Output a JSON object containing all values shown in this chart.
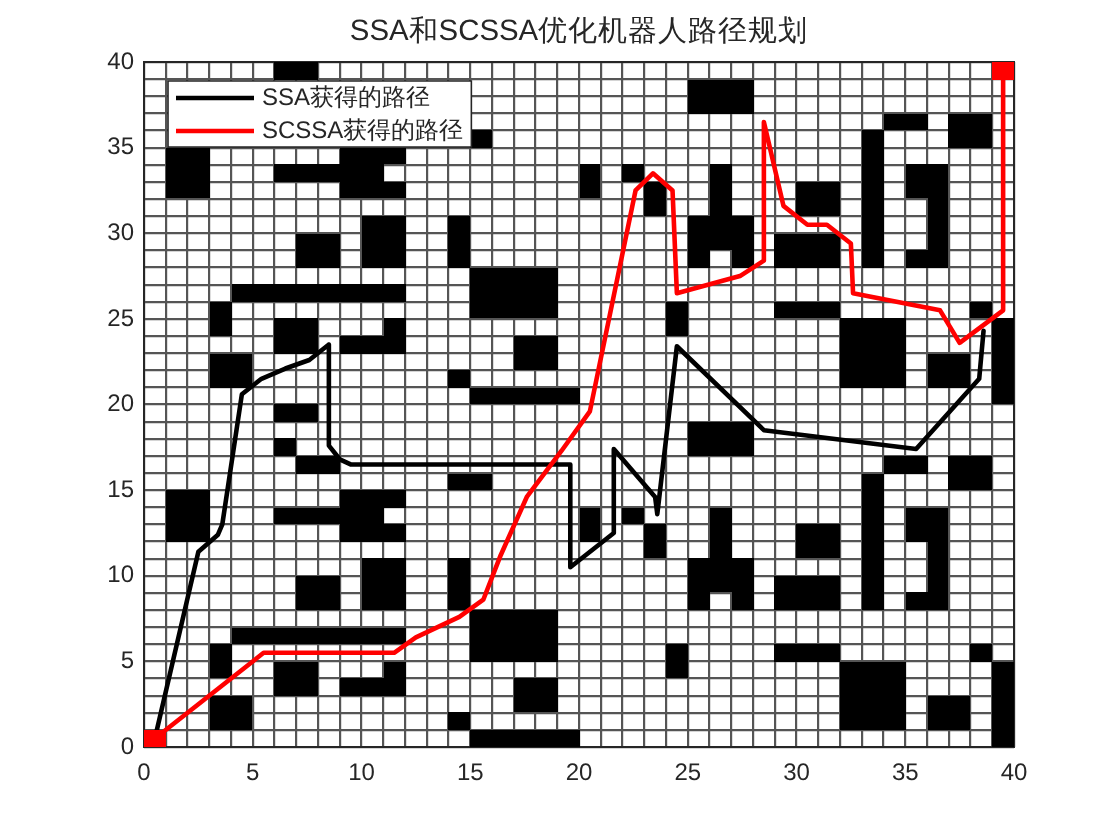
{
  "chart_data": {
    "type": "line",
    "title": "SSA和SCSSA优化机器人路径规划",
    "xlim": [
      0,
      40
    ],
    "ylim": [
      0,
      40
    ],
    "xticks": [
      0,
      {
        "value": 1,
        "label": null
      },
      {
        "value": 2,
        "label": null
      },
      {
        "value": 3,
        "label": null
      },
      {
        "value": 4,
        "label": null
      },
      5,
      {
        "value": 6,
        "label": null
      },
      {
        "value": 7,
        "label": null
      },
      {
        "value": 8,
        "label": null
      },
      {
        "value": 9,
        "label": null
      },
      10,
      {
        "value": 11,
        "label": null
      },
      {
        "value": 12,
        "label": null
      },
      {
        "value": 13,
        "label": null
      },
      {
        "value": 14,
        "label": null
      },
      15,
      {
        "value": 16,
        "label": null
      },
      {
        "value": 17,
        "label": null
      },
      {
        "value": 18,
        "label": null
      },
      {
        "value": 19,
        "label": null
      },
      20,
      {
        "value": 21,
        "label": null
      },
      {
        "value": 22,
        "label": null
      },
      {
        "value": 23,
        "label": null
      },
      {
        "value": 24,
        "label": null
      },
      25,
      {
        "value": 26,
        "label": null
      },
      {
        "value": 27,
        "label": null
      },
      {
        "value": 28,
        "label": null
      },
      {
        "value": 29,
        "label": null
      },
      30,
      {
        "value": 31,
        "label": null
      },
      {
        "value": 32,
        "label": null
      },
      {
        "value": 33,
        "label": null
      },
      {
        "value": 34,
        "label": null
      },
      35,
      {
        "value": 36,
        "label": null
      },
      {
        "value": 37,
        "label": null
      },
      {
        "value": 38,
        "label": null
      },
      {
        "value": 39,
        "label": null
      },
      40
    ],
    "yticks": [
      0,
      {
        "value": 1,
        "label": null
      },
      {
        "value": 2,
        "label": null
      },
      {
        "value": 3,
        "label": null
      },
      {
        "value": 4,
        "label": null
      },
      5,
      {
        "value": 6,
        "label": null
      },
      {
        "value": 7,
        "label": null
      },
      {
        "value": 8,
        "label": null
      },
      {
        "value": 9,
        "label": null
      },
      10,
      {
        "value": 11,
        "label": null
      },
      {
        "value": 12,
        "label": null
      },
      {
        "value": 13,
        "label": null
      },
      {
        "value": 14,
        "label": null
      },
      15,
      {
        "value": 16,
        "label": null
      },
      {
        "value": 17,
        "label": null
      },
      {
        "value": 18,
        "label": null
      },
      {
        "value": 19,
        "label": null
      },
      20,
      {
        "value": 21,
        "label": null
      },
      {
        "value": 22,
        "label": null
      },
      {
        "value": 23,
        "label": null
      },
      {
        "value": 24,
        "label": null
      },
      25,
      {
        "value": 26,
        "label": null
      },
      {
        "value": 27,
        "label": null
      },
      {
        "value": 28,
        "label": null
      },
      {
        "value": 29,
        "label": null
      },
      30,
      {
        "value": 31,
        "label": null
      },
      {
        "value": 32,
        "label": null
      },
      {
        "value": 33,
        "label": null
      },
      {
        "value": 34,
        "label": null
      },
      35,
      {
        "value": 36,
        "label": null
      },
      {
        "value": 37,
        "label": null
      },
      {
        "value": 38,
        "label": null
      },
      {
        "value": 39,
        "label": null
      },
      40
    ],
    "grid": true,
    "legend": "top left",
    "series": [
      {
        "type": "scatter",
        "marker": "square",
        "color": "#000000",
        "x": [
          15.5,
          16.5,
          17.5,
          18.5,
          19.5,
          39.5,
          3.5,
          4.5,
          14.5,
          32.5,
          33.5,
          34.5,
          36.5,
          37.5,
          39.5,
          3.5,
          4.5,
          17.5,
          18.5,
          32.5,
          33.5,
          34.5,
          36.5,
          37.5,
          39.5,
          6.5,
          7.5,
          9.5,
          10.5,
          11.5,
          17.5,
          18.5,
          32.5,
          33.5,
          34.5,
          39.5,
          3.5,
          6.5,
          7.5,
          11.5,
          24.5,
          32.5,
          33.5,
          34.5,
          39.5,
          3.5,
          15.5,
          16.5,
          17.5,
          18.5,
          24.5,
          29.5,
          30.5,
          31.5,
          38.5,
          4.5,
          5.5,
          6.5,
          7.5,
          8.5,
          9.5,
          10.5,
          11.5,
          15.5,
          16.5,
          17.5,
          18.5,
          15.5,
          16.5,
          17.5,
          18.5,
          7.5,
          8.5,
          10.5,
          11.5,
          14.5,
          25.5,
          27.5,
          29.5,
          30.5,
          31.5,
          33.5,
          35.5,
          36.5,
          7.5,
          8.5,
          10.5,
          11.5,
          14.5,
          25.5,
          26.5,
          27.5,
          29.5,
          30.5,
          31.5,
          33.5,
          36.5,
          10.5,
          11.5,
          14.5,
          25.5,
          26.5,
          27.5,
          33.5,
          36.5,
          23.5,
          26.5,
          30.5,
          31.5,
          33.5,
          36.5,
          1.5,
          2.5,
          9.5,
          10.5,
          11.5,
          20.5,
          23.5,
          26.5,
          30.5,
          31.5,
          33.5,
          35.5,
          36.5,
          1.5,
          2.5,
          6.5,
          7.5,
          8.5,
          9.5,
          10.5,
          20.5,
          22.5,
          26.5,
          33.5,
          35.5,
          36.5,
          1.5,
          2.5,
          9.5,
          10.5,
          11.5,
          33.5,
          14.5,
          15.5,
          33.5,
          37.5,
          38.5,
          7.5,
          8.5,
          34.5,
          35.5,
          37.5,
          38.5,
          6.5,
          25.5,
          26.5,
          27.5,
          25.5,
          26.5,
          27.5,
          6.5,
          7.5,
          15.5,
          16.5,
          17.5,
          18.5,
          19.5,
          39.5,
          3.5,
          4.5,
          14.5,
          32.5,
          33.5,
          34.5,
          36.5,
          37.5,
          39.5,
          3.5,
          4.5,
          17.5,
          18.5,
          32.5,
          33.5,
          34.5,
          36.5,
          37.5,
          39.5,
          6.5,
          7.5,
          9.5,
          10.5,
          11.5,
          17.5,
          18.5,
          32.5,
          33.5,
          34.5,
          39.5,
          3.5,
          6.5,
          7.5,
          11.5,
          24.5,
          32.5,
          33.5,
          34.5,
          39.5,
          3.5,
          15.5,
          16.5,
          17.5,
          18.5,
          24.5,
          29.5,
          30.5,
          31.5,
          38.5,
          4.5,
          5.5,
          6.5,
          7.5,
          8.5,
          9.5,
          10.5,
          11.5,
          15.5,
          16.5,
          17.5,
          18.5,
          15.5,
          16.5,
          17.5,
          18.5,
          7.5,
          8.5,
          10.5,
          11.5,
          14.5,
          25.5,
          27.5,
          29.5,
          30.5,
          31.5,
          33.5,
          35.5,
          36.5,
          7.5,
          8.5,
          10.5,
          11.5,
          14.5,
          25.5,
          26.5,
          27.5,
          29.5,
          30.5,
          31.5,
          33.5,
          36.5,
          10.5,
          11.5,
          14.5,
          25.5,
          26.5,
          27.5,
          33.5,
          36.5,
          23.5,
          26.5,
          30.5,
          31.5,
          33.5,
          36.5,
          1.5,
          2.5,
          9.5,
          10.5,
          11.5,
          20.5,
          23.5,
          26.5,
          30.5,
          31.5,
          33.5,
          35.5,
          36.5,
          1.5,
          2.5,
          6.5,
          7.5,
          8.5,
          9.5,
          10.5,
          20.5,
          22.5,
          26.5,
          33.5,
          35.5,
          36.5,
          1.5,
          2.5,
          9.5,
          10.5,
          11.5,
          33.5,
          15.5,
          33.5,
          37.5,
          38.5,
          34.5,
          35.5,
          37.5,
          38.5,
          25.5,
          26.5,
          27.5,
          25.5,
          26.5,
          27.5,
          6.5,
          7.5
        ],
        "values": [
          0.5,
          0.5,
          0.5,
          0.5,
          0.5,
          0.5,
          1.5,
          1.5,
          1.5,
          1.5,
          1.5,
          1.5,
          1.5,
          1.5,
          1.5,
          2.5,
          2.5,
          2.5,
          2.5,
          2.5,
          2.5,
          2.5,
          2.5,
          2.5,
          2.5,
          3.5,
          3.5,
          3.5,
          3.5,
          3.5,
          3.5,
          3.5,
          3.5,
          3.5,
          3.5,
          3.5,
          4.5,
          4.5,
          4.5,
          4.5,
          4.5,
          4.5,
          4.5,
          4.5,
          4.5,
          5.5,
          5.5,
          5.5,
          5.5,
          5.5,
          5.5,
          5.5,
          5.5,
          5.5,
          5.5,
          6.5,
          6.5,
          6.5,
          6.5,
          6.5,
          6.5,
          6.5,
          6.5,
          6.5,
          6.5,
          6.5,
          6.5,
          7.5,
          7.5,
          7.5,
          7.5,
          8.5,
          8.5,
          8.5,
          8.5,
          8.5,
          8.5,
          8.5,
          8.5,
          8.5,
          8.5,
          8.5,
          8.5,
          8.5,
          9.5,
          9.5,
          9.5,
          9.5,
          9.5,
          9.5,
          9.5,
          9.5,
          9.5,
          9.5,
          9.5,
          9.5,
          9.5,
          10.5,
          10.5,
          10.5,
          10.5,
          10.5,
          10.5,
          10.5,
          10.5,
          11.5,
          11.5,
          11.5,
          11.5,
          11.5,
          11.5,
          12.5,
          12.5,
          12.5,
          12.5,
          12.5,
          12.5,
          12.5,
          12.5,
          12.5,
          12.5,
          12.5,
          12.5,
          12.5,
          13.5,
          13.5,
          13.5,
          13.5,
          13.5,
          13.5,
          13.5,
          13.5,
          13.5,
          13.5,
          13.5,
          13.5,
          13.5,
          14.5,
          14.5,
          14.5,
          14.5,
          14.5,
          14.5,
          15.5,
          15.5,
          15.5,
          15.5,
          15.5,
          16.5,
          16.5,
          16.5,
          16.5,
          16.5,
          16.5,
          17.5,
          17.5,
          17.5,
          17.5,
          18.5,
          18.5,
          18.5,
          19.5,
          19.5,
          20.5,
          20.5,
          20.5,
          20.5,
          20.5,
          20.5,
          21.5,
          21.5,
          21.5,
          21.5,
          21.5,
          21.5,
          21.5,
          21.5,
          21.5,
          22.5,
          22.5,
          22.5,
          22.5,
          22.5,
          22.5,
          22.5,
          22.5,
          22.5,
          22.5,
          23.5,
          23.5,
          23.5,
          23.5,
          23.5,
          23.5,
          23.5,
          23.5,
          23.5,
          23.5,
          23.5,
          24.5,
          24.5,
          24.5,
          24.5,
          24.5,
          24.5,
          24.5,
          24.5,
          24.5,
          25.5,
          25.5,
          25.5,
          25.5,
          25.5,
          25.5,
          25.5,
          25.5,
          25.5,
          25.5,
          26.5,
          26.5,
          26.5,
          26.5,
          26.5,
          26.5,
          26.5,
          26.5,
          26.5,
          26.5,
          26.5,
          26.5,
          27.5,
          27.5,
          27.5,
          27.5,
          28.5,
          28.5,
          28.5,
          28.5,
          28.5,
          28.5,
          28.5,
          28.5,
          28.5,
          28.5,
          28.5,
          28.5,
          28.5,
          29.5,
          29.5,
          29.5,
          29.5,
          29.5,
          29.5,
          29.5,
          29.5,
          29.5,
          29.5,
          29.5,
          29.5,
          29.5,
          30.5,
          30.5,
          30.5,
          30.5,
          30.5,
          30.5,
          30.5,
          30.5,
          31.5,
          31.5,
          31.5,
          31.5,
          31.5,
          31.5,
          32.5,
          32.5,
          32.5,
          32.5,
          32.5,
          32.5,
          32.5,
          32.5,
          32.5,
          32.5,
          32.5,
          32.5,
          32.5,
          33.5,
          33.5,
          33.5,
          33.5,
          33.5,
          33.5,
          33.5,
          33.5,
          33.5,
          33.5,
          33.5,
          33.5,
          33.5,
          34.5,
          34.5,
          34.5,
          34.5,
          34.5,
          34.5,
          35.5,
          35.5,
          35.5,
          35.5,
          36.5,
          36.5,
          36.5,
          36.5,
          37.5,
          37.5,
          37.5,
          38.5,
          38.5,
          38.5,
          39.5,
          39.5
        ]
      },
      {
        "name": "SSA获得的路径",
        "color": "#000000",
        "x": [
          0.5,
          2.5,
          3.4,
          3.6,
          4.5,
          5.4,
          6.5,
          7.6,
          8.5,
          8.5,
          9.0,
          9.5,
          19.6,
          19.6,
          21.6,
          21.6,
          23.5,
          23.6,
          24.5,
          28.5,
          35.5,
          38.4,
          38.6
        ],
        "values": [
          0.5,
          11.4,
          12.4,
          13.0,
          20.6,
          21.5,
          22.1,
          22.6,
          23.5,
          17.6,
          16.8,
          16.5,
          16.5,
          10.5,
          12.5,
          17.4,
          14.6,
          13.6,
          23.4,
          18.5,
          17.4,
          21.5,
          24.3
        ]
      },
      {
        "name": "SCSSA获得的路径",
        "color": "#ff0000",
        "x": [
          0.5,
          5.5,
          11.5,
          12.5,
          14.5,
          15.6,
          16.4,
          17.6,
          19.2,
          20.5,
          22.6,
          23.4,
          24.3,
          24.5,
          27.4,
          28.5,
          28.5,
          29.4,
          30.5,
          31.4,
          32.5,
          32.6,
          36.6,
          37.5,
          39.5,
          39.5
        ],
        "values": [
          0.5,
          5.5,
          5.5,
          6.4,
          7.6,
          8.6,
          11.2,
          14.6,
          17.3,
          19.6,
          32.5,
          33.5,
          32.5,
          26.5,
          27.5,
          28.4,
          36.5,
          31.6,
          30.5,
          30.5,
          29.4,
          26.5,
          25.5,
          23.6,
          25.5,
          39.5
        ]
      },
      {
        "type": "scatter",
        "marker": "square",
        "color": "#ff0000",
        "x": [
          0.5,
          39.5
        ],
        "values": [
          0.5,
          39.5
        ]
      }
    ]
  }
}
